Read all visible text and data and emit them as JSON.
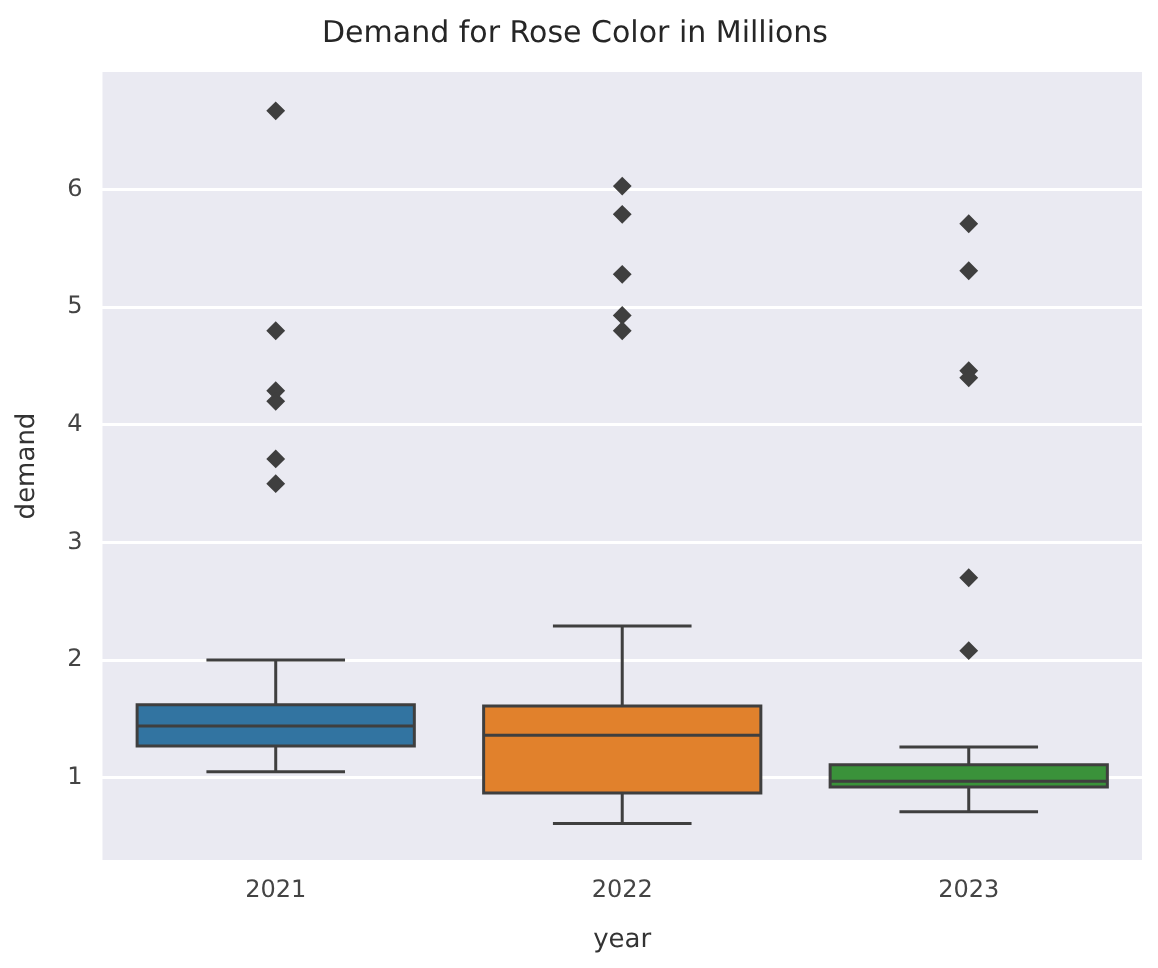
{
  "chart_data": {
    "type": "box",
    "title": "Demand for Rose Color in Millions",
    "xlabel": "year",
    "ylabel": "demand",
    "categories": [
      "2021",
      "2022",
      "2023"
    ],
    "colors": [
      "#3274a1",
      "#e1812c",
      "#3a923a"
    ],
    "boxes": [
      {
        "low": 1.05,
        "q1": 1.27,
        "median": 1.44,
        "q3": 1.62,
        "high": 2.0,
        "outliers": [
          6.67,
          4.8,
          4.29,
          4.2,
          3.71,
          3.5
        ]
      },
      {
        "low": 0.61,
        "q1": 0.87,
        "median": 1.36,
        "q3": 1.61,
        "high": 2.29,
        "outliers": [
          6.03,
          5.79,
          5.28,
          4.93,
          4.8
        ]
      },
      {
        "low": 0.71,
        "q1": 0.92,
        "median": 0.97,
        "q3": 1.11,
        "high": 1.26,
        "outliers": [
          5.71,
          5.31,
          4.46,
          4.4,
          2.7,
          2.08
        ]
      }
    ],
    "ylim": [
      0.3,
      7.0
    ],
    "yticks": [
      1,
      2,
      3,
      4,
      5,
      6
    ],
    "grid": "y",
    "marker": "diamond",
    "legend": false
  }
}
